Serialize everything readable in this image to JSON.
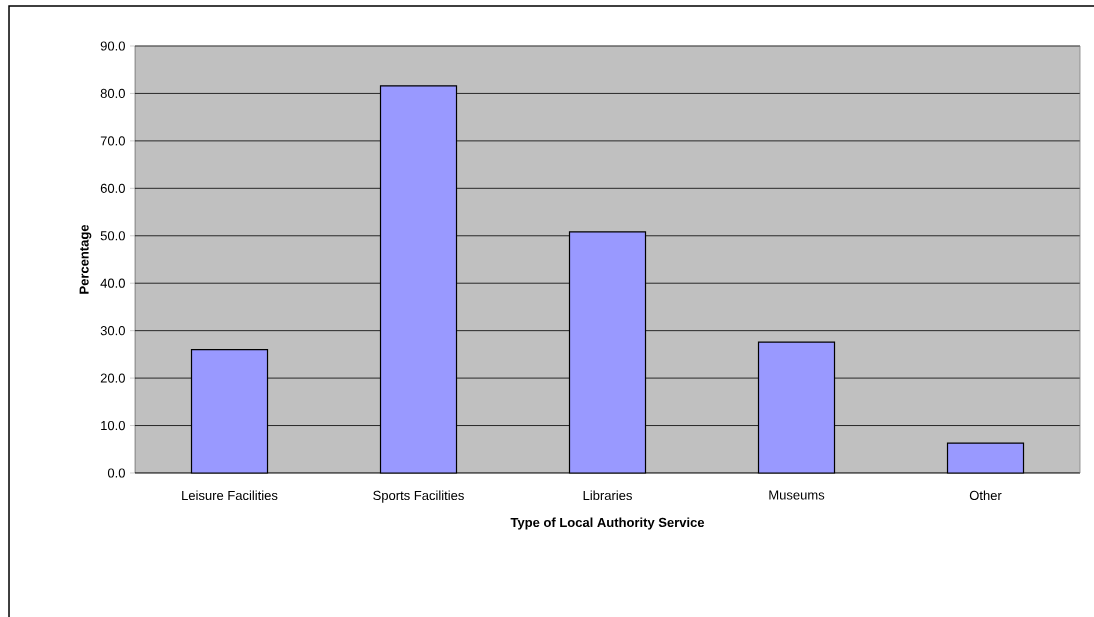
{
  "chart_data": {
    "type": "bar",
    "xlabel": "Type of Local Authority Service",
    "ylabel": "Percentage",
    "categories": [
      "Leisure Facilities",
      "Sports Facilities",
      "Libraries",
      "Museums",
      "Other"
    ],
    "values": [
      26.0,
      81.6,
      50.8,
      27.6,
      6.3
    ],
    "color": "#9999ff",
    "ylim": [
      0,
      90
    ],
    "yticks": [
      {
        "value": 0,
        "label": "0.0"
      },
      {
        "value": 10,
        "label": "10.0"
      },
      {
        "value": 20,
        "label": "20.0"
      },
      {
        "value": 30,
        "label": "30.0"
      },
      {
        "value": 40,
        "label": "40.0"
      },
      {
        "value": 50,
        "label": "50.0"
      },
      {
        "value": 60,
        "label": "60.0"
      },
      {
        "value": 70,
        "label": "70.0"
      },
      {
        "value": 80,
        "label": "80.0"
      },
      {
        "value": 90,
        "label": "90.0"
      }
    ],
    "grid": "y"
  }
}
